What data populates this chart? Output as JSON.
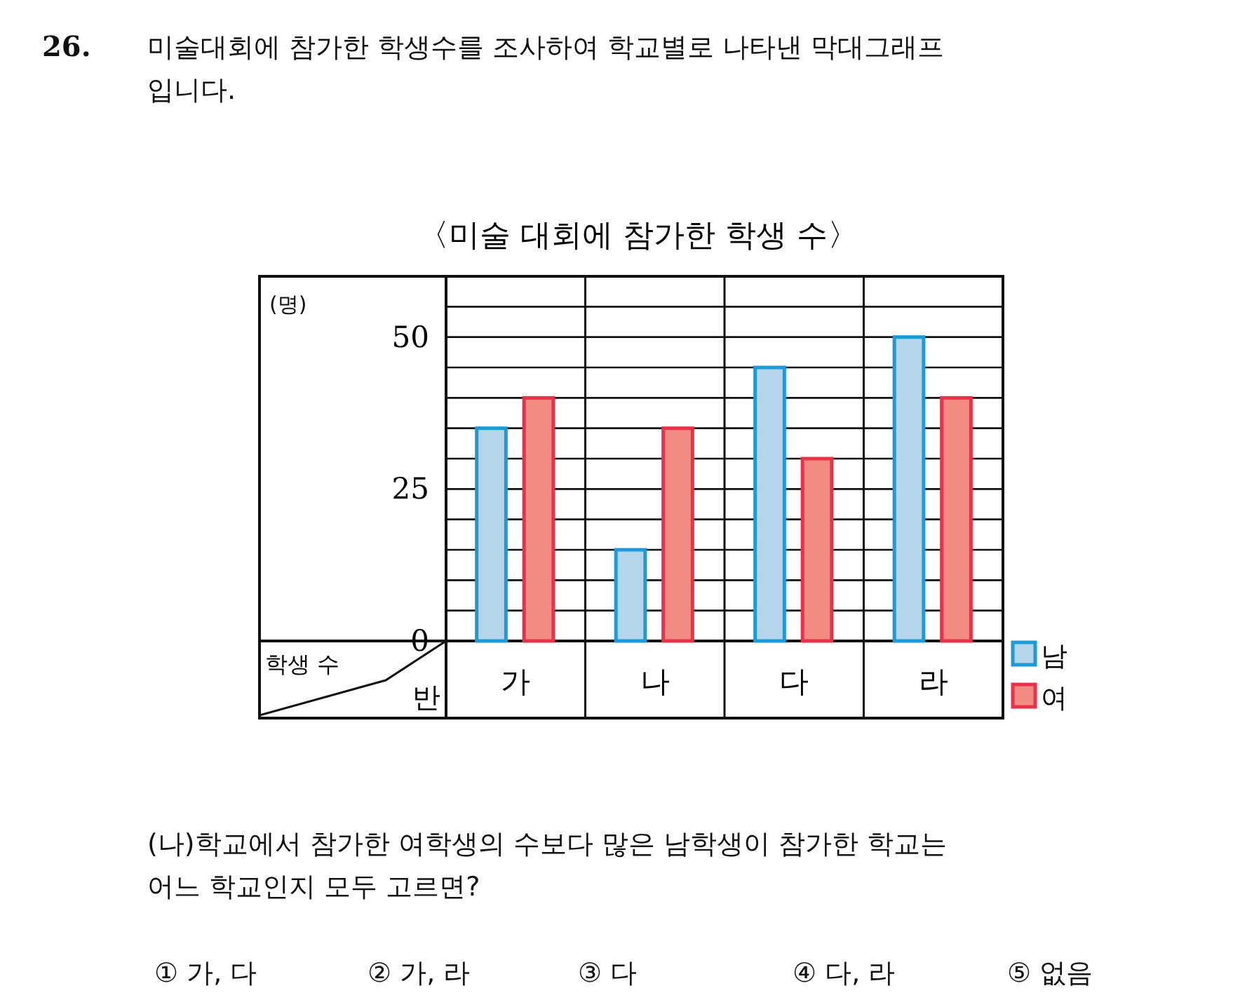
{
  "chart_data": {
    "type": "bar",
    "title": "〈미술 대회에 참가한 학생 수〉",
    "xlabel": "반",
    "ylabel": "학생 수",
    "categories": [
      "가",
      "나",
      "다",
      "라"
    ],
    "series": [
      {
        "name": "남",
        "color": "#b5d6ea",
        "values": [
          35,
          15,
          45,
          50
        ]
      },
      {
        "name": "여",
        "color": "#f28b82",
        "values": [
          40,
          35,
          30,
          40
        ]
      }
    ],
    "ylim": [
      0,
      60
    ],
    "yticks": [
      0,
      {
        "value": 5,
        "label": null
      },
      {
        "value": 10,
        "label": null
      },
      {
        "value": 15,
        "label": null
      },
      {
        "value": 20,
        "label": null
      },
      25,
      {
        "value": 30,
        "label": null
      },
      {
        "value": 35,
        "label": null
      },
      {
        "value": 40,
        "label": null
      },
      {
        "value": 45,
        "label": null
      },
      50,
      {
        "value": 55,
        "label": null
      }
    ],
    "grid": "y",
    "legend": "bottom right",
    "annotations": [
      "(명)",
      "26.",
      "미술대회에 참가한 학생수를 조사하여 학교별로 나타낸 막대그래프\n입니다.",
      "(나)학교에서 참가한 여학생의 수보다 많은 남학생이 참가한 학교는\n어느 학교인지 모두 고르면?",
      "① 가, 다",
      "② 가, 라",
      "③ 다",
      "④ 다, 라",
      "⑤ 없음"
    ]
  }
}
